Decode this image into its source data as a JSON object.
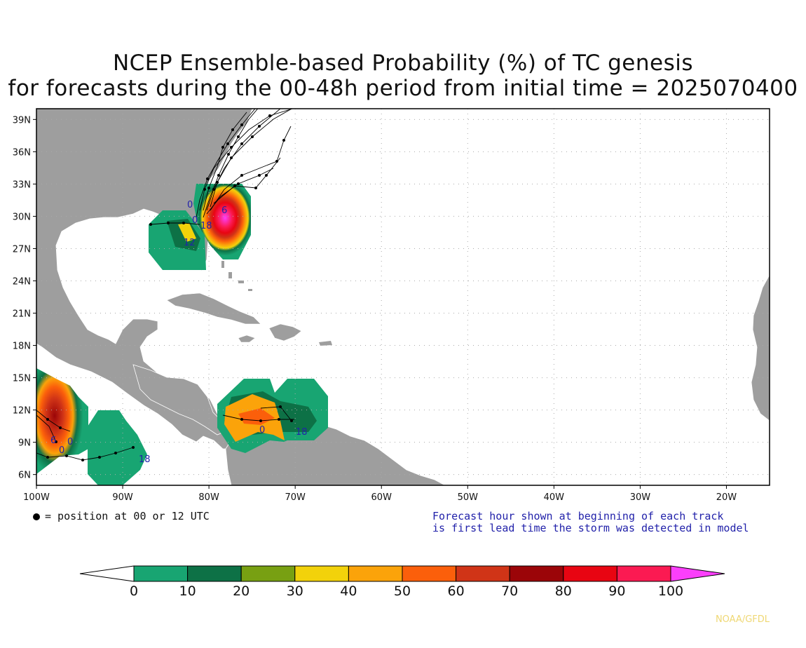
{
  "title_line1": "NCEP Ensemble-based Probability (%) of TC genesis",
  "title_line2": "for forecasts during the 00-48h period from initial time = 2025070400",
  "map": {
    "lon_range": [
      -100,
      -15
    ],
    "lat_range": [
      5,
      40
    ],
    "lat_ticks": [
      "39N",
      "36N",
      "33N",
      "30N",
      "27N",
      "24N",
      "21N",
      "18N",
      "15N",
      "12N",
      "9N",
      "6N"
    ],
    "lon_ticks": [
      "100W",
      "90W",
      "80W",
      "70W",
      "60W",
      "50W",
      "40W",
      "30W",
      "20W"
    ],
    "land_color": "#9e9e9e",
    "border_color": "#ffffff",
    "grid_style": "dotted"
  },
  "legend_note": "= position at 00 or 12 UTC",
  "forecast_note_line1": "Forecast hour shown at beginning of each track",
  "forecast_note_line2": "is first lead time the storm was detected in model",
  "forecast_note_color": "#2222aa",
  "colorbar": {
    "labels": [
      "0",
      "10",
      "20",
      "30",
      "40",
      "50",
      "60",
      "70",
      "80",
      "90",
      "100"
    ],
    "colors": [
      "#ffffff",
      "#18a572",
      "#0d7146",
      "#78a012",
      "#f2d20b",
      "#fba30a",
      "#fb5f0b",
      "#d03417",
      "#9b0508",
      "#e80512",
      "#fb1a52",
      "#fb3ffb"
    ]
  },
  "track_hour_labels": [
    "0",
    "12",
    "18",
    "18",
    "0",
    "6",
    "0",
    "0",
    "6",
    "18",
    "0"
  ],
  "credit": "NOAA/GFDL"
}
